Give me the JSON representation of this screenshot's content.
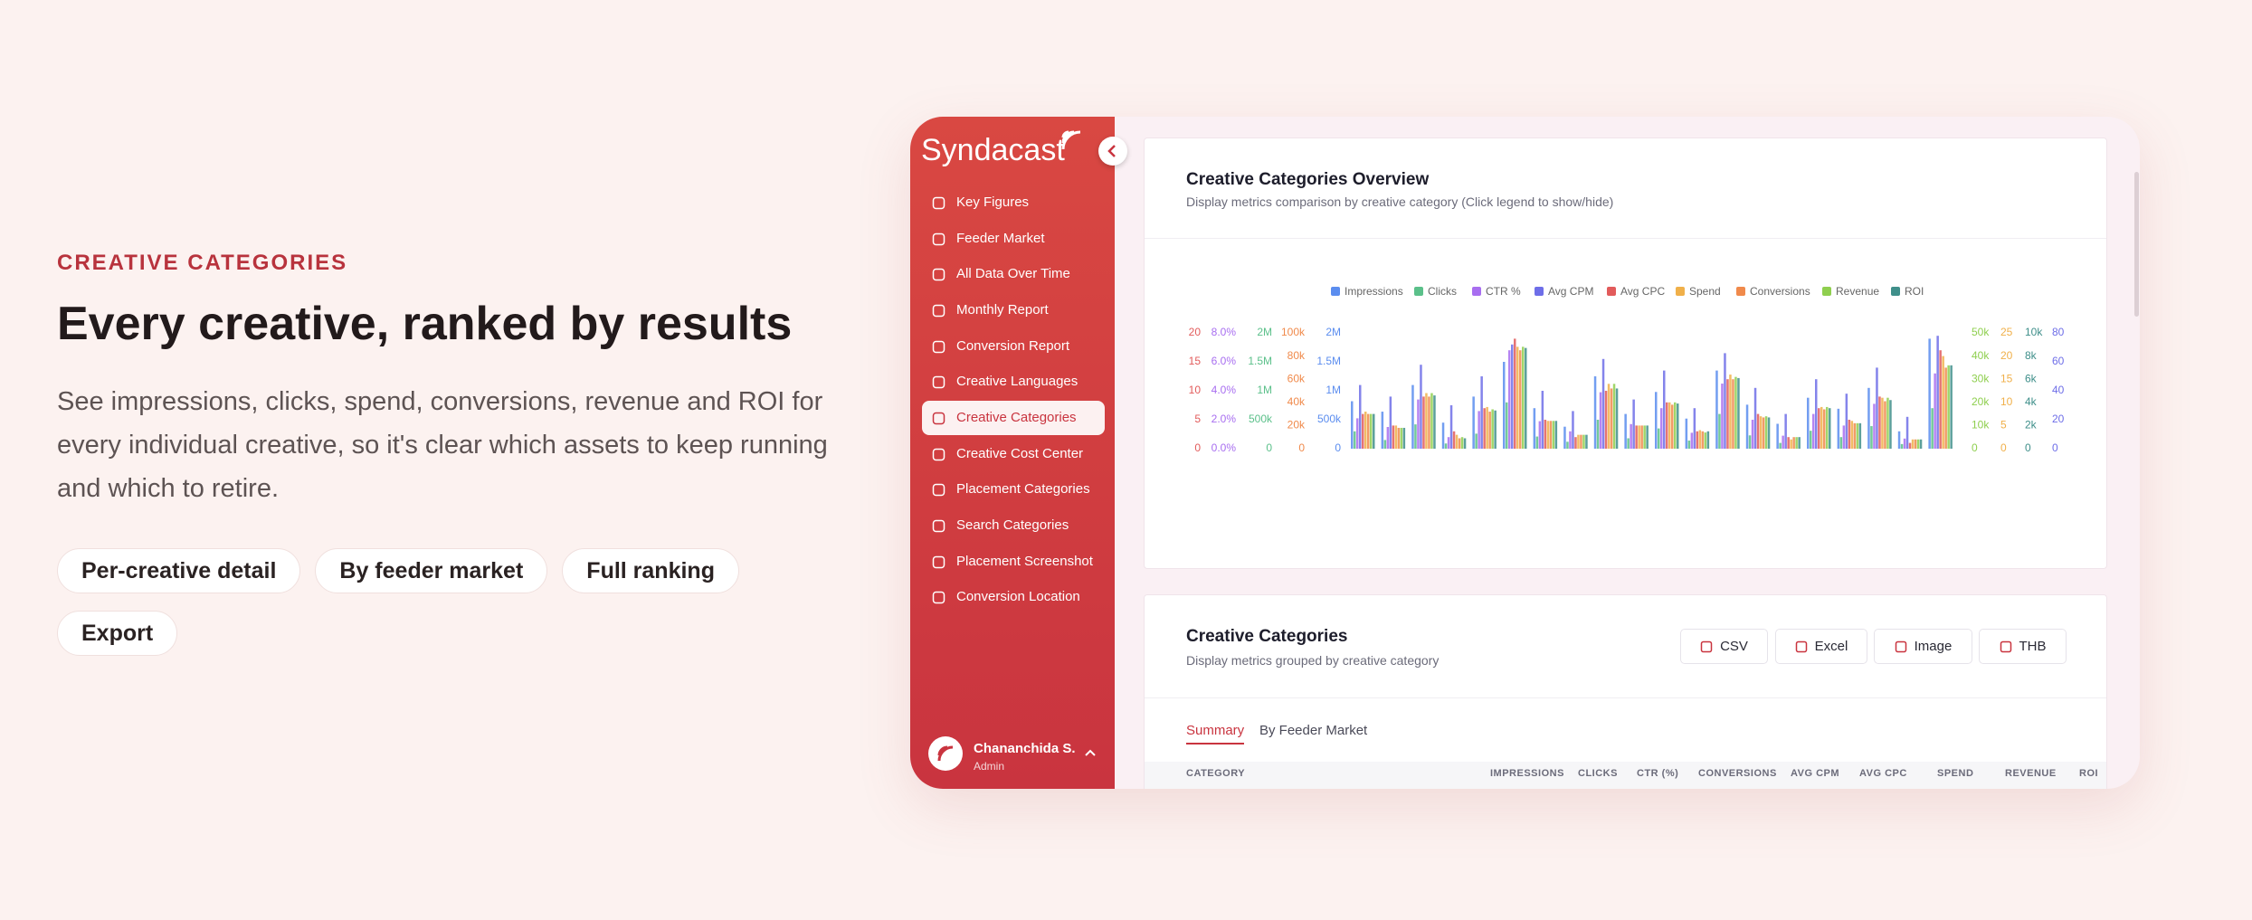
{
  "hero": {
    "eyebrow": "CREATIVE CATEGORIES",
    "title": "Every creative, ranked by results",
    "description": "See impressions, clicks, spend, conversions, revenue and ROI for every individual creative, so it's clear which assets to keep running and which to retire.",
    "tags": [
      "Per-creative detail",
      "By feeder market",
      "Full ranking",
      "Export"
    ]
  },
  "app": {
    "brand": "Syndacast",
    "nav": [
      {
        "label": "Key Figures"
      },
      {
        "label": "Feeder Market"
      },
      {
        "label": "All Data Over Time"
      },
      {
        "label": "Monthly Report"
      },
      {
        "label": "Conversion Report"
      },
      {
        "label": "Creative Languages"
      },
      {
        "label": "Creative Categories",
        "active": true
      },
      {
        "label": "Creative Cost Center"
      },
      {
        "label": "Placement Categories"
      },
      {
        "label": "Search Categories"
      },
      {
        "label": "Placement Screenshot"
      },
      {
        "label": "Conversion Location"
      }
    ],
    "user": {
      "name": "Chananchida S.",
      "role": "Admin"
    }
  },
  "overview_card": {
    "title": "Creative Categories Overview",
    "subtitle": "Display metrics comparison by creative category (Click legend to show/hide)"
  },
  "chart_data": {
    "type": "bar",
    "axes": [
      {
        "side": "left",
        "lim": [
          0,
          20
        ],
        "ticks": [
          0,
          5,
          10,
          15,
          20
        ]
      },
      {
        "side": "left",
        "lim": [
          0,
          8
        ],
        "ticks": [
          {
            "value": 0,
            "label": "0.0%"
          },
          {
            "value": 2,
            "label": "2.0%"
          },
          {
            "value": 4,
            "label": "4.0%"
          },
          {
            "value": 6,
            "label": "6.0%"
          },
          {
            "value": 8,
            "label": "8.0%"
          }
        ]
      },
      {
        "side": "left",
        "lim": [
          0,
          2000000
        ],
        "ticks": [
          0,
          {
            "value": 500000,
            "label": "500k"
          },
          {
            "value": 1000000,
            "label": "1M"
          },
          {
            "value": 1500000,
            "label": "1.5M"
          },
          {
            "value": 2000000,
            "label": "2M"
          }
        ]
      },
      {
        "side": "left",
        "lim": [
          0,
          100000
        ],
        "ticks": [
          0,
          {
            "value": 20000,
            "label": "20k"
          },
          {
            "value": 40000,
            "label": "40k"
          },
          {
            "value": 60000,
            "label": "60k"
          },
          {
            "value": 80000,
            "label": "80k"
          },
          {
            "value": 100000,
            "label": "100k"
          }
        ]
      },
      {
        "side": "left",
        "lim": [
          0,
          2000000
        ],
        "ticks": [
          0,
          {
            "value": 500000,
            "label": "500k"
          },
          {
            "value": 1000000,
            "label": "1M"
          },
          {
            "value": 1500000,
            "label": "1.5M"
          },
          {
            "value": 2000000,
            "label": "2M"
          }
        ]
      },
      {
        "side": "right",
        "lim": [
          0,
          50000
        ],
        "ticks": [
          0,
          {
            "value": 10000,
            "label": "10k"
          },
          {
            "value": 20000,
            "label": "20k"
          },
          {
            "value": 30000,
            "label": "30k"
          },
          {
            "value": 40000,
            "label": "40k"
          },
          {
            "value": 50000,
            "label": "50k"
          }
        ]
      },
      {
        "side": "right",
        "lim": [
          0,
          25
        ],
        "ticks": [
          0,
          5,
          10,
          15,
          20,
          25
        ]
      },
      {
        "side": "right",
        "lim": [
          0,
          10000
        ],
        "ticks": [
          0,
          {
            "value": 2000,
            "label": "2k"
          },
          {
            "value": 4000,
            "label": "4k"
          },
          {
            "value": 6000,
            "label": "6k"
          },
          {
            "value": 8000,
            "label": "8k"
          },
          {
            "value": 10000,
            "label": "10k"
          }
        ]
      },
      {
        "side": "right",
        "lim": [
          0,
          80
        ],
        "ticks": [
          0,
          20,
          40,
          60,
          80
        ]
      }
    ],
    "series": [
      {
        "name": "Impressions",
        "color": "#5b8def",
        "axis": 4,
        "values": [
          820000,
          640000,
          1100000,
          450000,
          900000,
          1500000,
          700000,
          380000,
          1250000,
          600000,
          980000,
          520000,
          1350000,
          760000,
          430000,
          880000,
          690000,
          1050000,
          300000,
          1900000
        ]
      },
      {
        "name": "Clicks",
        "color": "#5bc08a",
        "axis": 2,
        "values": [
          300000,
          150000,
          420000,
          90000,
          260000,
          800000,
          210000,
          120000,
          500000,
          180000,
          350000,
          140000,
          600000,
          230000,
          100000,
          310000,
          200000,
          390000,
          80000,
          700000
        ]
      },
      {
        "name": "CTR %",
        "color": "#a86ef0",
        "axis": 1,
        "values": [
          2.1,
          1.5,
          3.4,
          0.8,
          2.6,
          6.8,
          1.9,
          1.2,
          3.9,
          1.7,
          2.8,
          1.1,
          4.5,
          2.0,
          0.9,
          2.4,
          1.6,
          3.1,
          0.7,
          5.2
        ]
      },
      {
        "name": "Avg CPM",
        "color": "#6e6ee8",
        "axis": 8,
        "values": [
          44,
          36,
          58,
          30,
          50,
          72,
          40,
          26,
          62,
          34,
          54,
          28,
          66,
          42,
          24,
          48,
          38,
          56,
          22,
          78
        ]
      },
      {
        "name": "Avg CPC",
        "color": "#e25b5b",
        "axis": 0,
        "values": [
          6,
          4,
          9,
          3,
          7,
          19,
          5,
          2,
          10,
          4,
          8,
          3,
          12,
          6,
          2,
          7,
          5,
          9,
          1,
          17
        ]
      },
      {
        "name": "Spend",
        "color": "#f0b04a",
        "axis": 6,
        "values": [
          8,
          5,
          12,
          3,
          9,
          22,
          6,
          3,
          14,
          5,
          10,
          4,
          16,
          7,
          2,
          9,
          6,
          11,
          2,
          20
        ]
      },
      {
        "name": "Conversions",
        "color": "#f08a4b",
        "axis": 3,
        "values": [
          30000,
          18000,
          45000,
          9000,
          32000,
          85000,
          24000,
          12000,
          52000,
          20000,
          38000,
          15000,
          60000,
          27000,
          10000,
          34000,
          22000,
          41000,
          8000,
          70000
        ]
      },
      {
        "name": "Revenue",
        "color": "#8fcf4f",
        "axis": 5,
        "values": [
          15000,
          9000,
          24000,
          5000,
          17000,
          44000,
          12000,
          6000,
          28000,
          10000,
          20000,
          7000,
          31000,
          14000,
          5000,
          18000,
          11000,
          22000,
          4000,
          36000
        ]
      },
      {
        "name": "ROI",
        "color": "#3f8f8a",
        "axis": 7,
        "values": [
          3000,
          1800,
          4600,
          900,
          3300,
          8700,
          2400,
          1200,
          5200,
          2000,
          3900,
          1500,
          6100,
          2700,
          1000,
          3500,
          2200,
          4200,
          800,
          7200
        ]
      }
    ]
  },
  "table_card": {
    "title": "Creative Categories",
    "subtitle": "Display metrics grouped by creative category",
    "buttons": [
      "CSV",
      "Excel",
      "Image",
      "THB"
    ],
    "tabs": [
      {
        "label": "Summary",
        "active": true
      },
      {
        "label": "By Feeder Market"
      }
    ],
    "columns": [
      "CATEGORY",
      "IMPRESSIONS",
      "CLICKS",
      "CTR (%)",
      "CONVERSIONS",
      "AVG CPM",
      "AVG CPC",
      "SPEND",
      "REVENUE",
      "ROI"
    ]
  }
}
